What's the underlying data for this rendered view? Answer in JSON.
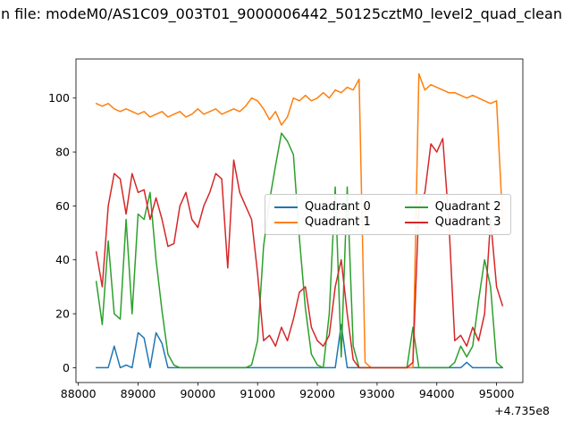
{
  "title": "n file: modeM0/AS1C09_003T01_9000006442_50125cztM0_level2_quad_clean",
  "chart_data": {
    "type": "line",
    "title": "n file: modeM0/AS1C09_003T01_9000006442_50125cztM0_level2_quad_clean",
    "xlabel": "",
    "ylabel": "",
    "grid": false,
    "legend_position": "center",
    "x_offset_text": "+4.735e8",
    "xlim": [
      87960,
      95440
    ],
    "ylim": [
      -5.5,
      114.5
    ],
    "x_ticks": [
      88000,
      89000,
      90000,
      91000,
      92000,
      93000,
      94000,
      95000
    ],
    "x_tick_labels": [
      "88000",
      "89000",
      "90000",
      "91000",
      "92000",
      "93000",
      "94000",
      "95000"
    ],
    "y_ticks": [
      0,
      20,
      40,
      60,
      80,
      100
    ],
    "y_tick_labels": [
      "0",
      "20",
      "40",
      "60",
      "80",
      "100"
    ],
    "x": [
      88300,
      88400,
      88500,
      88600,
      88700,
      88800,
      88900,
      89000,
      89100,
      89200,
      89300,
      89400,
      89500,
      89600,
      89700,
      89800,
      89900,
      90000,
      90100,
      90200,
      90300,
      90400,
      90500,
      90600,
      90700,
      90800,
      90900,
      91000,
      91100,
      91200,
      91300,
      91400,
      91500,
      91600,
      91700,
      91800,
      91900,
      92000,
      92100,
      92200,
      92300,
      92400,
      92500,
      92600,
      92700,
      92800,
      92900,
      93000,
      93100,
      93200,
      93300,
      93400,
      93500,
      93600,
      93700,
      93800,
      93900,
      94000,
      94100,
      94200,
      94300,
      94400,
      94500,
      94600,
      94700,
      94800,
      94900,
      95000,
      95100
    ],
    "series": [
      {
        "name": "Quadrant 0",
        "color": "#1f77b4",
        "values": [
          0,
          0,
          0,
          8,
          0,
          1,
          0,
          13,
          11,
          0,
          13,
          9,
          0,
          0,
          0,
          0,
          0,
          0,
          0,
          0,
          0,
          0,
          0,
          0,
          0,
          0,
          0,
          0,
          0,
          0,
          0,
          0,
          0,
          0,
          0,
          0,
          0,
          0,
          0,
          0,
          0,
          16,
          0,
          0,
          0,
          0,
          0,
          0,
          0,
          0,
          0,
          0,
          0,
          0,
          0,
          0,
          0,
          0,
          0,
          0,
          0,
          0,
          2,
          0,
          0,
          0,
          0,
          0,
          0
        ]
      },
      {
        "name": "Quadrant 1",
        "color": "#ff7f0e",
        "values": [
          98,
          97,
          98,
          96,
          95,
          96,
          95,
          94,
          95,
          93,
          94,
          95,
          93,
          94,
          95,
          93,
          94,
          96,
          94,
          95,
          96,
          94,
          95,
          96,
          95,
          97,
          100,
          99,
          96,
          92,
          95,
          90,
          93,
          100,
          99,
          101,
          99,
          100,
          102,
          100,
          103,
          102,
          104,
          103,
          107,
          2,
          0,
          0,
          0,
          0,
          0,
          0,
          0,
          0,
          109,
          103,
          105,
          104,
          103,
          102,
          102,
          101,
          100,
          101,
          100,
          99,
          98,
          99,
          55
        ]
      },
      {
        "name": "Quadrant 2",
        "color": "#2ca02c",
        "values": [
          32,
          16,
          47,
          20,
          18,
          55,
          20,
          57,
          55,
          65,
          40,
          21,
          5,
          1,
          0,
          0,
          0,
          0,
          0,
          0,
          0,
          0,
          0,
          0,
          0,
          0,
          1,
          10,
          45,
          62,
          75,
          87,
          84,
          79,
          48,
          22,
          5,
          1,
          0,
          20,
          67,
          4,
          67,
          8,
          0,
          0,
          0,
          0,
          0,
          0,
          0,
          0,
          0,
          15,
          0,
          0,
          0,
          0,
          0,
          0,
          2,
          8,
          4,
          8,
          25,
          40,
          30,
          2,
          0
        ]
      },
      {
        "name": "Quadrant 3",
        "color": "#d62728",
        "values": [
          43,
          30,
          60,
          72,
          70,
          57,
          72,
          65,
          66,
          55,
          63,
          55,
          45,
          46,
          60,
          65,
          55,
          52,
          60,
          65,
          72,
          70,
          37,
          77,
          65,
          60,
          55,
          35,
          10,
          12,
          8,
          15,
          10,
          18,
          28,
          30,
          15,
          10,
          8,
          12,
          30,
          40,
          20,
          3,
          0,
          0,
          0,
          0,
          0,
          0,
          0,
          0,
          0,
          2,
          60,
          65,
          83,
          80,
          85,
          55,
          10,
          12,
          8,
          15,
          10,
          20,
          55,
          30,
          23
        ]
      }
    ]
  }
}
